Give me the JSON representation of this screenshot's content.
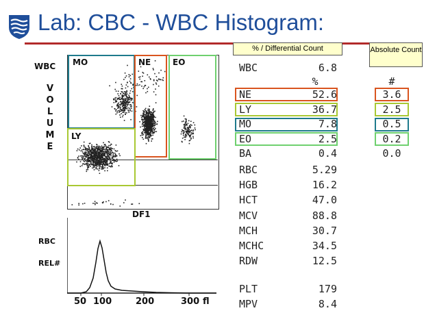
{
  "slide": {
    "title": "Lab: CBC - WBC Histogram:"
  },
  "callouts": {
    "differential": "% / Differential Count",
    "absolute": "Absolute Count"
  },
  "scatter": {
    "y_title": "WBC",
    "y_axis_letters": [
      "V",
      "O",
      "L",
      "U",
      "M",
      "E"
    ],
    "x_label": "DF1",
    "regions": [
      "MO",
      "NE",
      "EO",
      "LY"
    ],
    "colors": {
      "NE": "#d9541e",
      "LY": "#a8c832",
      "MO": "#1e7a8c",
      "EO": "#6ed06e"
    }
  },
  "histogram": {
    "y_label_1": "RBC",
    "y_label_2": "REL#",
    "x_ticks": [
      "50",
      "100",
      "200",
      "300"
    ],
    "x_unit": "fl"
  },
  "results": {
    "wbc": {
      "label": "WBC",
      "value": "6.8"
    },
    "pct_header": "%",
    "abs_header": "#",
    "differential": [
      {
        "label": "NE",
        "pct": "52.6",
        "abs": "3.6"
      },
      {
        "label": "LY",
        "pct": "36.7",
        "abs": "2.5"
      },
      {
        "label": "MO",
        "pct": "7.8",
        "abs": "0.5"
      },
      {
        "label": "EO",
        "pct": "2.5",
        "abs": "0.2"
      },
      {
        "label": "BA",
        "pct": "0.4",
        "abs": "0.0"
      }
    ],
    "rbc_indices": [
      {
        "label": "RBC",
        "value": "5.29"
      },
      {
        "label": "HGB",
        "value": "16.2"
      },
      {
        "label": "HCT",
        "value": "47.0"
      },
      {
        "label": "MCV",
        "value": "88.8"
      },
      {
        "label": "MCH",
        "value": "30.7"
      },
      {
        "label": "MCHC",
        "value": "34.5"
      },
      {
        "label": "RDW",
        "value": "12.5"
      }
    ],
    "platelets": [
      {
        "label": "PLT",
        "value": "179"
      },
      {
        "label": "MPV",
        "value": "8.4"
      }
    ]
  }
}
